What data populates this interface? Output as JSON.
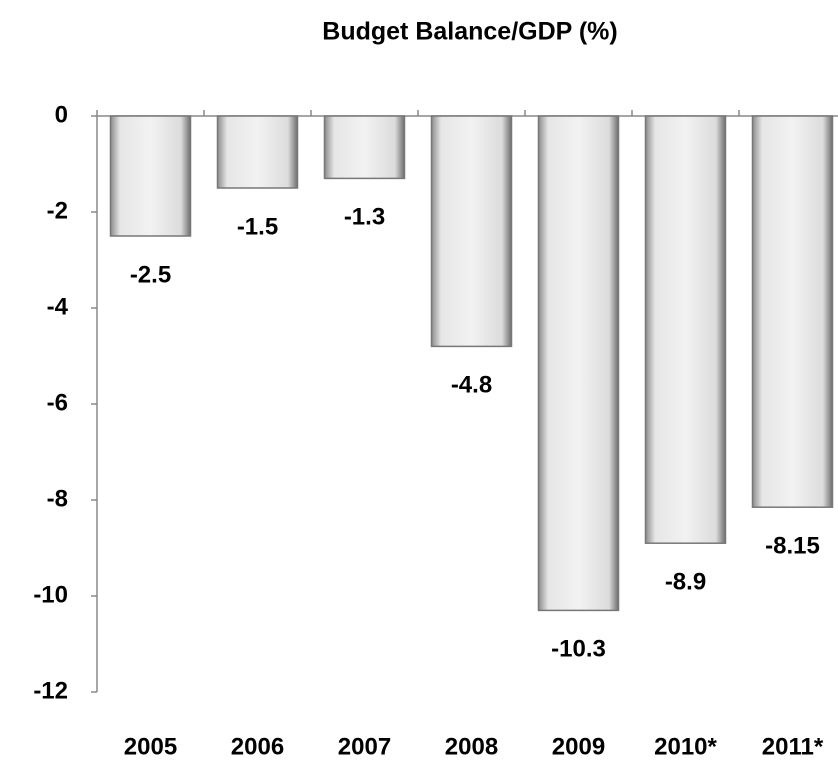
{
  "chart_data": {
    "type": "bar",
    "title": "Budget Balance/GDP (%)",
    "categories": [
      "2005",
      "2006",
      "2007",
      "2008",
      "2009",
      "2010*",
      "2011*"
    ],
    "values": [
      -2.5,
      -1.5,
      -1.3,
      -4.8,
      -10.3,
      -8.9,
      -8.15
    ],
    "color": "#d9d9d9",
    "ylim": [
      -12,
      0
    ],
    "yticks": [
      0,
      -2,
      -4,
      -6,
      -8,
      -10,
      -12
    ],
    "grid": false
  }
}
